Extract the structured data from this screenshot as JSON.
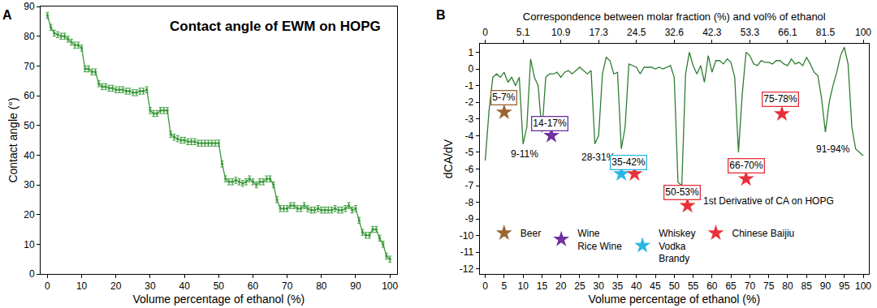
{
  "chart_data": [
    {
      "panel": "A",
      "type": "line",
      "title": "Contact angle of EWM on HOPG",
      "x_label": "Volume percentage of ethanol (%)",
      "y_label": "Contact angle (°)",
      "x": [
        0,
        1,
        2,
        3,
        4,
        5,
        6,
        7,
        8,
        9,
        10,
        11,
        12,
        13,
        14,
        15,
        16,
        17,
        18,
        19,
        20,
        21,
        22,
        23,
        24,
        25,
        26,
        27,
        28,
        29,
        30,
        31,
        32,
        33,
        34,
        35,
        36,
        37,
        38,
        39,
        40,
        41,
        42,
        43,
        44,
        45,
        46,
        47,
        48,
        49,
        50,
        51,
        52,
        53,
        54,
        55,
        56,
        57,
        58,
        59,
        60,
        61,
        62,
        63,
        64,
        65,
        66,
        67,
        68,
        69,
        70,
        71,
        72,
        73,
        74,
        75,
        76,
        77,
        78,
        79,
        80,
        81,
        82,
        83,
        84,
        85,
        86,
        87,
        88,
        89,
        90,
        91,
        92,
        93,
        94,
        95,
        96,
        97,
        98,
        99,
        100
      ],
      "series": [
        {
          "color": "#3a9a3a",
          "marker": "square",
          "values": [
            87,
            83,
            81,
            80.5,
            80,
            80,
            79,
            78,
            77,
            77,
            76,
            69,
            69,
            68,
            68,
            64,
            63,
            63,
            62.5,
            62.5,
            62,
            62,
            62,
            61.5,
            61.5,
            61,
            61,
            61.5,
            61.5,
            62,
            55,
            54,
            54,
            55,
            55,
            55,
            47,
            46,
            45.5,
            45,
            45,
            44.5,
            44.5,
            44.5,
            44,
            44,
            44,
            44,
            44,
            44,
            44,
            37,
            32,
            31,
            31,
            31.5,
            31,
            30.5,
            31,
            32,
            31,
            30,
            31,
            31,
            32,
            32,
            30,
            25,
            22,
            22,
            22,
            23,
            23,
            22,
            22,
            23,
            22,
            21.5,
            21.5,
            22,
            21.5,
            21.5,
            21.5,
            21.5,
            22,
            21.5,
            21.5,
            22,
            23,
            21.5,
            22,
            18,
            14,
            13,
            13,
            15,
            15,
            12,
            10,
            6,
            5
          ],
          "errors": [
            1,
            1,
            1,
            1,
            1,
            1,
            1,
            1,
            1,
            1,
            1,
            1,
            1,
            1,
            1,
            1,
            1,
            1,
            1,
            1,
            1,
            1,
            1,
            1,
            1,
            1,
            1,
            1,
            1,
            1,
            1,
            1,
            1,
            1,
            1,
            1,
            1,
            1,
            1,
            1,
            1,
            1,
            1,
            1,
            1,
            1,
            1,
            1,
            1,
            1,
            1,
            1,
            1,
            1,
            1,
            1,
            1,
            1,
            1,
            1,
            1,
            1,
            1,
            1,
            1,
            1,
            1,
            1,
            1,
            1,
            1,
            1,
            1,
            1,
            1,
            1,
            1,
            1,
            1,
            1,
            1,
            1,
            1,
            1,
            1,
            1,
            1,
            1,
            1,
            1,
            1,
            1,
            1,
            1,
            1,
            1,
            1,
            1,
            1,
            1,
            1
          ]
        }
      ],
      "xlim": [
        -2,
        102
      ],
      "xticks": [
        0,
        10,
        20,
        30,
        40,
        50,
        60,
        70,
        80,
        90,
        100
      ],
      "ylim": [
        0,
        90
      ],
      "yticks": [
        0,
        10,
        20,
        30,
        40,
        50,
        60,
        70,
        80,
        90
      ],
      "grid": false
    },
    {
      "panel": "B",
      "type": "line",
      "x_label": "Volume percentage of ethanol (%)",
      "y_label": "dCA/dV",
      "x2_label": "Correspondence between molar fraction (%) and vol% of ethanol",
      "x": [
        0,
        1,
        2,
        3,
        4,
        5,
        6,
        7,
        8,
        9,
        10,
        11,
        12,
        13,
        14,
        15,
        16,
        17,
        18,
        19,
        20,
        21,
        22,
        23,
        24,
        25,
        26,
        27,
        28,
        29,
        30,
        31,
        32,
        33,
        34,
        35,
        36,
        37,
        38,
        39,
        40,
        41,
        42,
        43,
        44,
        45,
        46,
        47,
        48,
        49,
        50,
        51,
        52,
        53,
        54,
        55,
        56,
        57,
        58,
        59,
        60,
        61,
        62,
        63,
        64,
        65,
        66,
        67,
        68,
        69,
        70,
        71,
        72,
        73,
        74,
        75,
        76,
        77,
        78,
        79,
        80,
        81,
        82,
        83,
        84,
        85,
        86,
        87,
        88,
        89,
        90,
        91,
        92,
        93,
        94,
        95,
        96,
        97,
        98,
        99,
        100
      ],
      "series": [
        {
          "type": "line",
          "color": "#2e7d32",
          "values": [
            -5.5,
            -2.5,
            -0.5,
            -0.3,
            -0.5,
            -0.2,
            -0.8,
            -0.5,
            -1.0,
            -0.5,
            -4.5,
            -3.5,
            0.6,
            -0.5,
            -1.0,
            -3.8,
            -0.5,
            -0.3,
            -0.3,
            -0.2,
            -0.5,
            -0.2,
            -0.1,
            -0.3,
            -0.1,
            0.1,
            -0.1,
            -0.3,
            -0.1,
            -4.5,
            -4.0,
            -0.3,
            0.7,
            0.5,
            -0.3,
            -0.2,
            -4.8,
            -3.5,
            0.3,
            0.2,
            0.1,
            -0.3,
            0.1,
            0.1,
            0.1,
            0.0,
            0.1,
            0.0,
            0.1,
            0.2,
            -0.5,
            -6.8,
            -7.0,
            -0.3,
            1.0,
            0.2,
            -0.3,
            0.2,
            -0.8,
            0.8,
            -0.2,
            0.5,
            0.5,
            0.3,
            0.6,
            0.4,
            -0.5,
            -5.0,
            -1.5,
            1.0,
            0.8,
            0.3,
            0.2,
            0.5,
            0.4,
            0.4,
            0.3,
            0.5,
            0.5,
            0.3,
            0.2,
            0.6,
            0.3,
            0.4,
            0.2,
            0.7,
            0.3,
            -0.2,
            -0.4,
            -1.8,
            -3.8,
            -2.0,
            -1.0,
            -0.2,
            0.8,
            1.3,
            0.3,
            -3.5,
            -4.8,
            -5.0,
            -5.2
          ]
        },
        {
          "type": "scatter",
          "name": "Beer",
          "color": "#9a6433",
          "marker": "star",
          "x": [
            5
          ],
          "values": [
            -2.6
          ]
        },
        {
          "type": "scatter",
          "name": "Wine\nRice Wine",
          "color": "#7030a0",
          "marker": "star",
          "x": [
            17.5
          ],
          "values": [
            -4.0
          ]
        },
        {
          "type": "scatter",
          "name": "Whiskey\nVodka\nBrandy",
          "color": "#29b6e6",
          "marker": "star",
          "x": [
            36
          ],
          "values": [
            -6.3
          ]
        },
        {
          "type": "scatter",
          "name": "Chinese Baijiu",
          "color": "#e8303a",
          "marker": "star",
          "x": [
            39.5,
            53.5,
            69,
            78.5
          ],
          "values": [
            -6.3,
            -8.2,
            -6.6,
            -2.7
          ]
        }
      ],
      "annotations": [
        {
          "text": "5-7%",
          "x": 5,
          "y": -1.7,
          "color": "#9a6433"
        },
        {
          "text": "9-11%",
          "x": 10.5,
          "y": -5.1
        },
        {
          "text": "14-17%",
          "x": 17,
          "y": -3.3,
          "color": "#7030a0"
        },
        {
          "text": "28-31%",
          "x": 30,
          "y": -5.3
        },
        {
          "text": "35-42%",
          "x": 38,
          "y": -5.6,
          "color": "#29b6e6"
        },
        {
          "text": "50-53%",
          "x": 52,
          "y": -7.4,
          "color": "#e8303a"
        },
        {
          "text": "1st Derivative of CA on HOPG",
          "x": 75,
          "y": -7.9
        },
        {
          "text": "66-70%",
          "x": 69,
          "y": -5.8,
          "color": "#e8303a"
        },
        {
          "text": "75-78%",
          "x": 78,
          "y": -1.8,
          "color": "#e8303a"
        },
        {
          "text": "91-94%",
          "x": 92,
          "y": -4.8
        }
      ],
      "xlim": [
        -1.5,
        101.5
      ],
      "xticks": [
        0,
        5,
        10,
        15,
        20,
        25,
        30,
        35,
        40,
        45,
        50,
        55,
        60,
        65,
        70,
        75,
        80,
        85,
        90,
        95,
        100
      ],
      "x2lim": [
        -1.5,
        101.5
      ],
      "x2ticks": [
        {
          "value": 0,
          "label": "0"
        },
        {
          "value": 10,
          "label": "5.1"
        },
        {
          "value": 20,
          "label": "10.9"
        },
        {
          "value": 30,
          "label": "17.3"
        },
        {
          "value": 40,
          "label": "24.5"
        },
        {
          "value": 50,
          "label": "32.6"
        },
        {
          "value": 60,
          "label": "42.3"
        },
        {
          "value": 70,
          "label": "53.3"
        },
        {
          "value": 80,
          "label": "66.1"
        },
        {
          "value": 90,
          "label": "81.5"
        },
        {
          "value": 100,
          "label": "100"
        }
      ],
      "ylim": [
        -12.3,
        1.5
      ],
      "yticks": [
        1,
        0,
        -1,
        -2,
        -3,
        -4,
        -5,
        -6,
        -7,
        -8,
        -9,
        -10,
        -11,
        -12
      ],
      "grid": false,
      "legend": "bottom left"
    }
  ]
}
